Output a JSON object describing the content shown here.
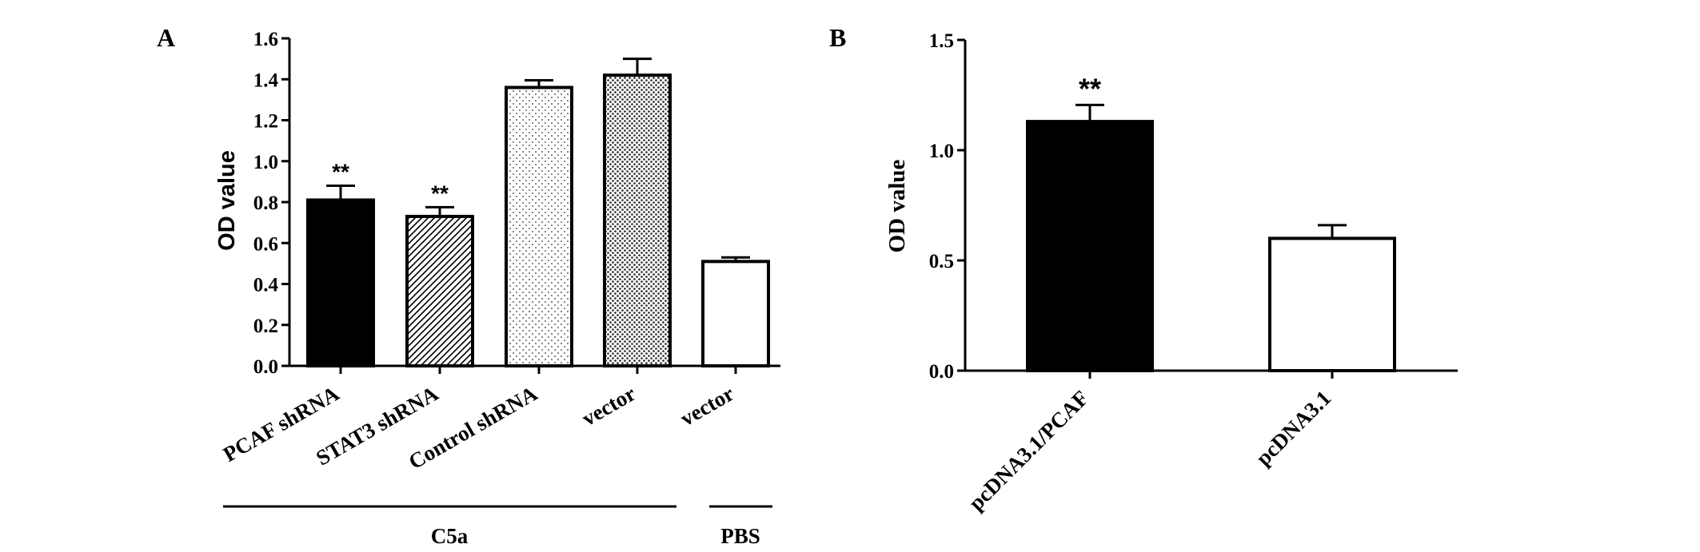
{
  "panels": [
    {
      "label": "A"
    },
    {
      "label": "B"
    }
  ],
  "colors": {
    "ink": "#000000",
    "background": "#ffffff"
  },
  "chart_data": [
    {
      "type": "bar",
      "panel": "A",
      "ylabel": "OD value",
      "ylim": [
        0,
        1.6
      ],
      "yticks": [
        "0.0",
        "0.2",
        "0.4",
        "0.6",
        "0.8",
        "1.0",
        "1.2",
        "1.4",
        "1.6"
      ],
      "categories": [
        "PCAF shRNA",
        "STAT3 shRNA",
        "Control shRNA",
        "vector",
        "vector"
      ],
      "values": [
        0.81,
        0.73,
        1.36,
        1.42,
        0.51
      ],
      "errors": [
        0.07,
        0.045,
        0.035,
        0.08,
        0.02
      ],
      "fills": [
        "solid-black",
        "diagonal-hatch",
        "sparse-dots",
        "dense-dots",
        "white"
      ],
      "annotations": [
        "**",
        "**",
        "",
        "",
        ""
      ],
      "groups": [
        {
          "label": "C5a",
          "categories": [
            0,
            1,
            2,
            3
          ]
        },
        {
          "label": "PBS",
          "categories": [
            4
          ]
        }
      ],
      "grid": false
    },
    {
      "type": "bar",
      "panel": "B",
      "ylabel": "OD value",
      "ylim": [
        0,
        1.5
      ],
      "yticks": [
        "0.0",
        "0.5",
        "1.0",
        "1.5"
      ],
      "categories": [
        "pcDNA3.1/PCAF",
        "pcDNA3.1"
      ],
      "values": [
        1.13,
        0.6
      ],
      "errors": [
        0.075,
        0.06
      ],
      "fills": [
        "solid-black",
        "white"
      ],
      "annotations": [
        "**",
        ""
      ],
      "grid": false
    }
  ]
}
